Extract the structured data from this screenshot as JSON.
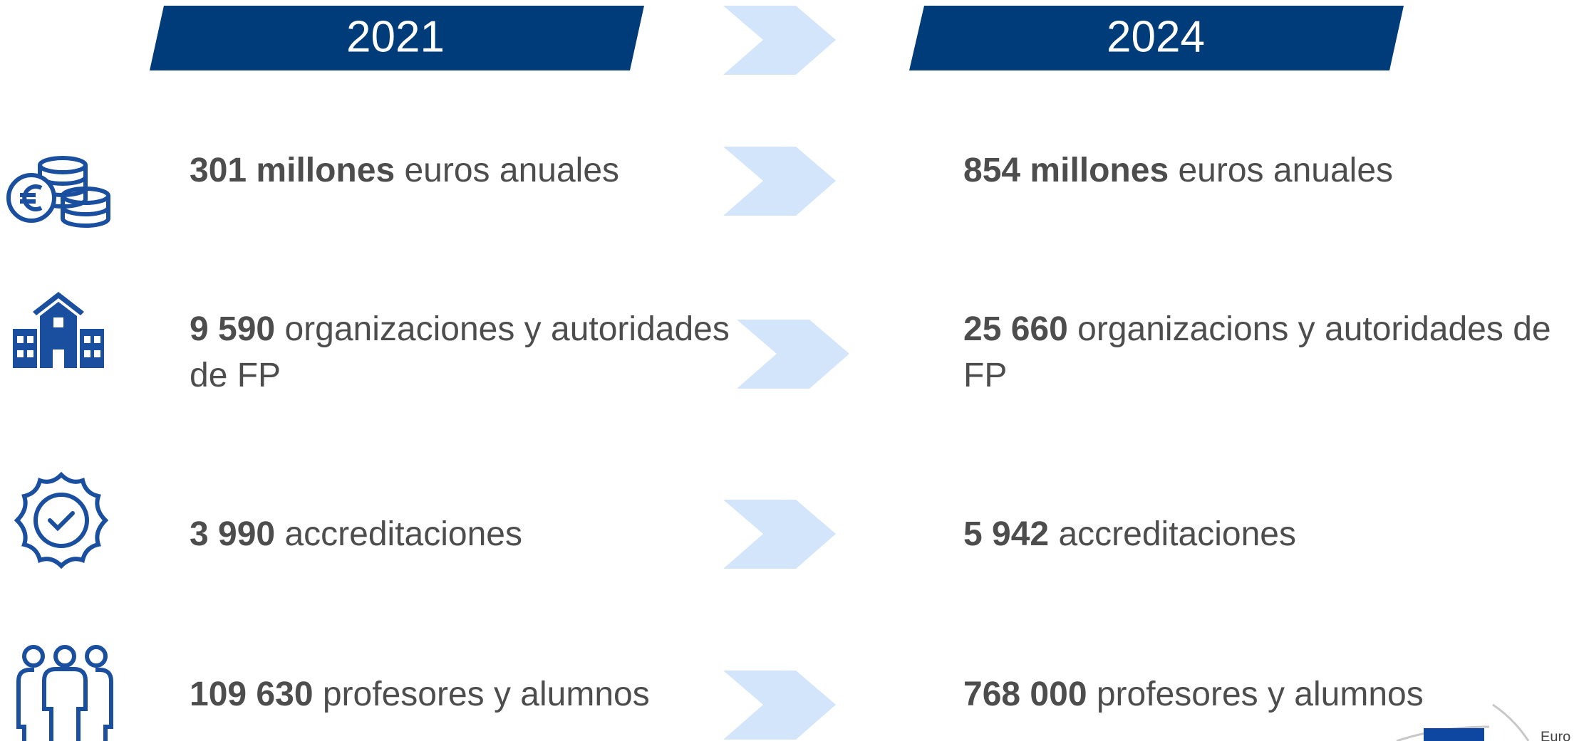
{
  "headers": [
    "2021",
    "2024"
  ],
  "rows": [
    {
      "left": {
        "bold": "301 millones",
        "text": " euros anuales"
      },
      "right": {
        "bold": "854 millones",
        "text": " euros anuales"
      }
    },
    {
      "left": {
        "bold": "9 590",
        "text": " organizaciones y autoridades de FP"
      },
      "right": {
        "bold": "25 660",
        "text": " organizacions y autoridades de FP"
      }
    },
    {
      "left": {
        "bold": "3 990",
        "text": " accreditaciones"
      },
      "right": {
        "bold": "5 942",
        "text": " accreditaciones"
      }
    },
    {
      "left": {
        "bold": "109 630",
        "text": " profesores y alumnos"
      },
      "right": {
        "bold": "768 000",
        "text": " profesores y alumnos"
      }
    }
  ],
  "logo": "Euro"
}
